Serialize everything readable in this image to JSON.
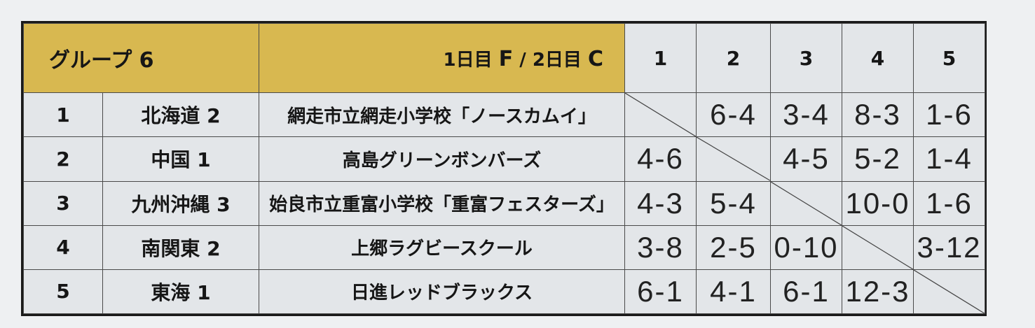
{
  "header": {
    "title": "グループ 6",
    "day1_label": "1日目",
    "day1_court": "F",
    "separator": "/",
    "day2_label": "2日目",
    "day2_court": "C",
    "columns": [
      "1",
      "2",
      "3",
      "4",
      "5"
    ]
  },
  "rows": [
    {
      "no": "1",
      "region": "北海道 2",
      "team": "網走市立網走小学校「ノースカムイ」",
      "scores": [
        "",
        "6-4",
        "3-4",
        "8-3",
        "1-6"
      ]
    },
    {
      "no": "2",
      "region": "中国 1",
      "team": "高島グリーンボンバーズ",
      "scores": [
        "4-6",
        "",
        "4-5",
        "5-2",
        "1-4"
      ]
    },
    {
      "no": "3",
      "region": "九州沖縄 3",
      "team": "始良市立重富小学校「重富フェスターズ」",
      "scores": [
        "4-3",
        "5-4",
        "",
        "10-0",
        "1-6"
      ]
    },
    {
      "no": "4",
      "region": "南関東 2",
      "team": "上郷ラグビースクール",
      "scores": [
        "3-8",
        "2-5",
        "0-10",
        "",
        "3-12"
      ]
    },
    {
      "no": "5",
      "region": "東海 1",
      "team": "日進レッドブラックス",
      "scores": [
        "6-1",
        "4-1",
        "6-1",
        "12-3",
        ""
      ]
    }
  ],
  "colors": {
    "header_gold": "#d8b850",
    "board": "#e3e6e9"
  }
}
